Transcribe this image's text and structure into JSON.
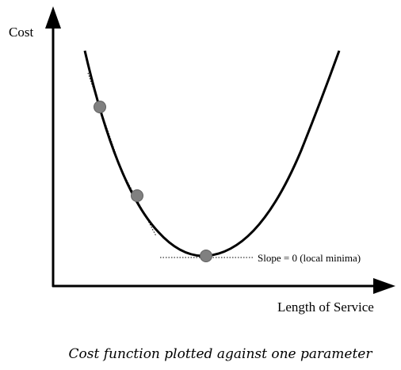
{
  "axes": {
    "y_label": "Cost",
    "x_label": "Length of Service"
  },
  "annotation": {
    "slope_label": "Slope = 0 (local minima)"
  },
  "caption": "Cost function plotted against one parameter",
  "colors": {
    "curve": "#000000",
    "point_fill": "#808080",
    "point_stroke": "#5f5f5f",
    "background": "#ffffff"
  }
}
